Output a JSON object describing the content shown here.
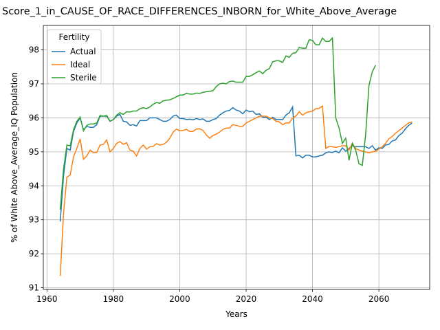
{
  "chart_data": {
    "type": "line",
    "title": "Score_1_in_CAUSE_OF_RACE_DIFFERENCES_INBORN_for_White_Above_Average",
    "x_label": "Years",
    "y_label": "% of White Above_Average_IQ Population",
    "legend_title": "Fertility",
    "legend_position": "upper left",
    "grid": true,
    "xlim": [
      1958.9,
      2075.3
    ],
    "ylim": [
      90.95,
      98.72
    ],
    "xticks": [
      1960,
      1980,
      2000,
      2020,
      2040,
      2060
    ],
    "yticks": [
      91,
      92,
      93,
      94,
      95,
      96,
      97,
      98
    ],
    "x": [
      1964,
      1965,
      1966,
      1967,
      1968,
      1969,
      1970,
      1971,
      1972,
      1973,
      1974,
      1975,
      1976,
      1977,
      1978,
      1979,
      1980,
      1981,
      1982,
      1983,
      1984,
      1985,
      1986,
      1987,
      1988,
      1989,
      1990,
      1991,
      1992,
      1993,
      1994,
      1995,
      1996,
      1997,
      1998,
      1999,
      2000,
      2001,
      2002,
      2003,
      2004,
      2005,
      2006,
      2007,
      2008,
      2009,
      2010,
      2011,
      2012,
      2013,
      2014,
      2015,
      2016,
      2017,
      2018,
      2019,
      2020,
      2021,
      2022,
      2023,
      2024,
      2025,
      2026,
      2027,
      2028,
      2029,
      2030,
      2031,
      2032,
      2033,
      2034,
      2035,
      2036,
      2037,
      2038,
      2039,
      2040,
      2041,
      2042,
      2043,
      2044,
      2045,
      2046,
      2047,
      2048,
      2049,
      2050,
      2051,
      2052,
      2053,
      2054,
      2055,
      2056,
      2057,
      2058,
      2059,
      2060,
      2061,
      2062,
      2063,
      2064,
      2065,
      2066,
      2067,
      2068,
      2069,
      2070
    ],
    "series": [
      {
        "name": "Actual",
        "color": "#1f77b4",
        "values": [
          92.95,
          94.3,
          95.1,
          95.05,
          95.6,
          95.85,
          96.0,
          95.65,
          95.75,
          95.72,
          95.72,
          95.8,
          96.05,
          96.05,
          96.05,
          95.9,
          95.95,
          96.05,
          96.1,
          95.9,
          95.88,
          95.78,
          95.8,
          95.76,
          95.92,
          95.92,
          95.92,
          96.0,
          96.0,
          96.0,
          95.95,
          95.9,
          95.9,
          95.95,
          96.05,
          96.08,
          95.98,
          95.98,
          95.95,
          95.96,
          95.94,
          95.98,
          95.95,
          95.97,
          95.9,
          95.9,
          95.95,
          95.98,
          96.08,
          96.15,
          96.2,
          96.22,
          96.3,
          96.23,
          96.2,
          96.12,
          96.23,
          96.18,
          96.2,
          96.1,
          96.12,
          96.02,
          96.02,
          95.95,
          96.02,
          95.95,
          95.95,
          95.95,
          96.08,
          96.15,
          96.32,
          94.88,
          94.9,
          94.82,
          94.9,
          94.9,
          94.85,
          94.85,
          94.88,
          94.9,
          94.97,
          95.0,
          94.98,
          95.02,
          94.97,
          95.12,
          95.02,
          95.1,
          95.18,
          95.15,
          95.15,
          95.15,
          95.15,
          95.1,
          95.18,
          95.05,
          95.12,
          95.1,
          95.2,
          95.22,
          95.32,
          95.35,
          95.48,
          95.55,
          95.68,
          95.78,
          95.85
        ]
      },
      {
        "name": "Ideal",
        "color": "#ff7f0e",
        "values": [
          91.35,
          93.2,
          94.25,
          94.32,
          94.85,
          95.1,
          95.38,
          94.78,
          94.88,
          95.05,
          94.98,
          94.98,
          95.2,
          95.22,
          95.35,
          95.0,
          95.1,
          95.25,
          95.3,
          95.22,
          95.27,
          95.05,
          95.02,
          94.88,
          95.1,
          95.2,
          95.08,
          95.15,
          95.16,
          95.24,
          95.2,
          95.22,
          95.28,
          95.4,
          95.58,
          95.67,
          95.62,
          95.63,
          95.66,
          95.6,
          95.6,
          95.67,
          95.68,
          95.63,
          95.5,
          95.4,
          95.48,
          95.52,
          95.58,
          95.66,
          95.7,
          95.7,
          95.8,
          95.78,
          95.75,
          95.75,
          95.85,
          95.9,
          95.95,
          96.0,
          96.05,
          96.05,
          96.05,
          96.0,
          95.98,
          95.9,
          95.88,
          95.8,
          95.85,
          95.85,
          96.0,
          96.05,
          96.18,
          96.08,
          96.15,
          96.18,
          96.2,
          96.27,
          96.28,
          96.35,
          95.1,
          95.16,
          95.15,
          95.13,
          95.15,
          95.18,
          95.18,
          95.05,
          95.25,
          95.1,
          95.05,
          95.02,
          95.0,
          94.97,
          95.0,
          95.02,
          95.08,
          95.15,
          95.25,
          95.38,
          95.45,
          95.55,
          95.62,
          95.7,
          95.78,
          95.85,
          95.88
        ]
      },
      {
        "name": "Sterile",
        "color": "#2ca02c",
        "values": [
          93.3,
          94.5,
          95.2,
          95.18,
          95.65,
          95.9,
          96.02,
          95.62,
          95.78,
          95.82,
          95.82,
          95.85,
          96.07,
          96.05,
          96.07,
          95.9,
          95.95,
          96.08,
          96.15,
          96.1,
          96.18,
          96.17,
          96.2,
          96.2,
          96.27,
          96.3,
          96.27,
          96.32,
          96.4,
          96.45,
          96.43,
          96.5,
          96.52,
          96.53,
          96.57,
          96.62,
          96.67,
          96.67,
          96.72,
          96.7,
          96.7,
          96.73,
          96.72,
          96.75,
          96.77,
          96.78,
          96.8,
          96.92,
          97.0,
          97.02,
          97.0,
          97.07,
          97.08,
          97.05,
          97.05,
          97.05,
          97.22,
          97.22,
          97.27,
          97.33,
          97.38,
          97.3,
          97.4,
          97.45,
          97.65,
          97.68,
          97.68,
          97.63,
          97.82,
          97.78,
          97.9,
          97.92,
          98.07,
          98.05,
          98.05,
          98.3,
          98.28,
          98.15,
          98.15,
          98.35,
          98.25,
          98.25,
          98.35,
          96.0,
          95.7,
          95.25,
          95.4,
          94.75,
          95.25,
          95.05,
          94.65,
          94.6,
          95.5,
          96.95,
          97.35,
          97.55,
          null,
          null,
          null,
          null,
          null,
          null,
          null,
          null,
          null,
          null,
          null
        ]
      }
    ]
  }
}
